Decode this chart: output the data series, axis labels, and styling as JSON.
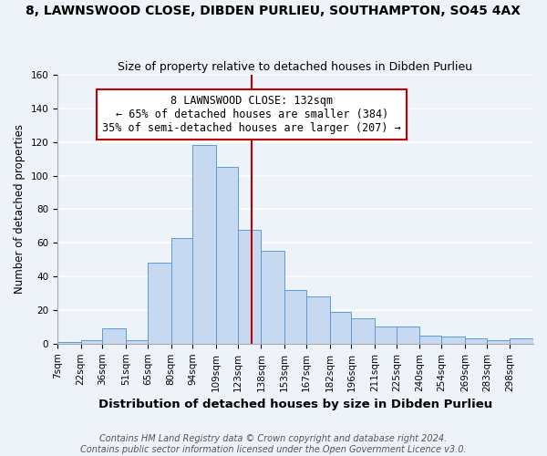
{
  "title": "8, LAWNSWOOD CLOSE, DIBDEN PURLIEU, SOUTHAMPTON, SO45 4AX",
  "subtitle": "Size of property relative to detached houses in Dibden Purlieu",
  "xlabel": "Distribution of detached houses by size in Dibden Purlieu",
  "ylabel": "Number of detached properties",
  "bin_labels": [
    "7sqm",
    "22sqm",
    "36sqm",
    "51sqm",
    "65sqm",
    "80sqm",
    "94sqm",
    "109sqm",
    "123sqm",
    "138sqm",
    "153sqm",
    "167sqm",
    "182sqm",
    "196sqm",
    "211sqm",
    "225sqm",
    "240sqm",
    "254sqm",
    "269sqm",
    "283sqm",
    "298sqm"
  ],
  "bin_edges": [
    7,
    22,
    36,
    51,
    65,
    80,
    94,
    109,
    123,
    138,
    153,
    167,
    182,
    196,
    211,
    225,
    240,
    254,
    269,
    283,
    298,
    313
  ],
  "bar_heights": [
    1,
    2,
    9,
    2,
    48,
    63,
    118,
    105,
    68,
    55,
    32,
    28,
    19,
    15,
    10,
    10,
    5,
    4,
    3,
    2,
    3
  ],
  "bar_color": "#c6d9f1",
  "bar_edge_color": "#5b9bd5",
  "ref_line_x": 132,
  "ref_line_color": "#c00000",
  "annotation_line1": "8 LAWNSWOOD CLOSE: 132sqm",
  "annotation_line2": "← 65% of detached houses are smaller (384)",
  "annotation_line3": "35% of semi-detached houses are larger (207) →",
  "annotation_box_color": "#ffffff",
  "annotation_box_edge_color": "#c00000",
  "ylim": [
    0,
    160
  ],
  "yticks": [
    0,
    20,
    40,
    60,
    80,
    100,
    120,
    140,
    160
  ],
  "footer_line1": "Contains HM Land Registry data © Crown copyright and database right 2024.",
  "footer_line2": "Contains public sector information licensed under the Open Government Licence v3.0.",
  "background_color": "#eef2f9",
  "grid_color": "#ffffff",
  "title_fontsize": 10,
  "subtitle_fontsize": 9,
  "xlabel_fontsize": 9.5,
  "ylabel_fontsize": 8.5,
  "tick_fontsize": 7.5,
  "annotation_fontsize": 8.5,
  "footer_fontsize": 7
}
